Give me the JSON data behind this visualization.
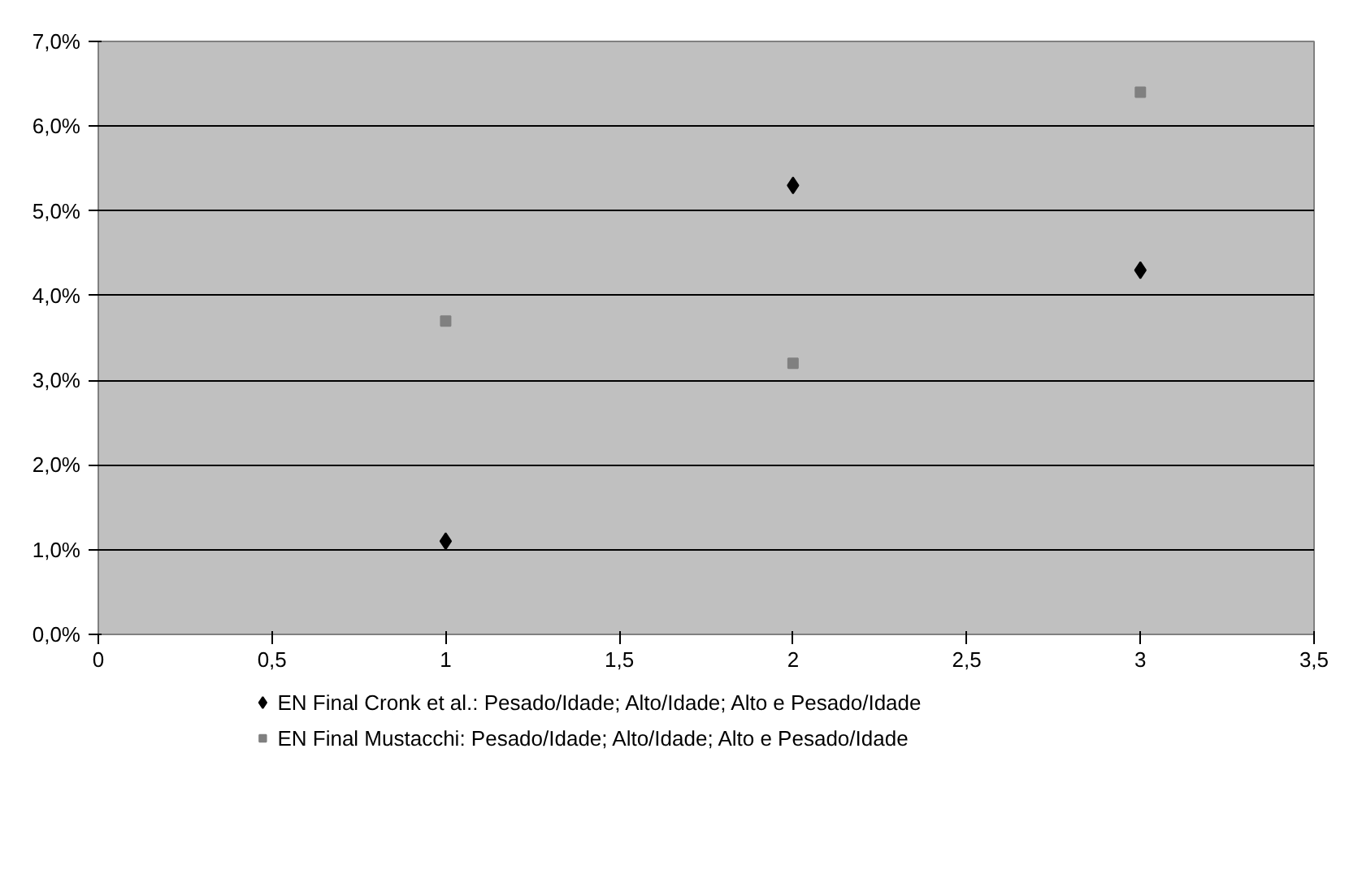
{
  "chart_data": {
    "type": "scatter",
    "xlim": [
      0,
      3.5
    ],
    "xticks": [
      0,
      {
        "value": 0.5,
        "label": "0,5"
      },
      1,
      {
        "value": 1.5,
        "label": "1,5"
      },
      2,
      {
        "value": 2.5,
        "label": "2,5"
      },
      3,
      {
        "value": 3.5,
        "label": "3,5"
      }
    ],
    "ylim": [
      0,
      7
    ],
    "yticks": [
      {
        "value": 0,
        "label": "0,0%"
      },
      {
        "value": 1,
        "label": "1,0%"
      },
      {
        "value": 2,
        "label": "2,0%"
      },
      {
        "value": 3,
        "label": "3,0%"
      },
      {
        "value": 4,
        "label": "4,0%"
      },
      {
        "value": 5,
        "label": "5,0%"
      },
      {
        "value": 6,
        "label": "6,0%"
      },
      {
        "value": 7,
        "label": "7,0%"
      }
    ],
    "x": [
      1,
      2,
      3
    ],
    "series": [
      {
        "name": "EN Final Cronk et al.: Pesado/Idade; Alto/Idade; Alto e Pesado/Idade",
        "color": "#000000",
        "marker": "diamond",
        "values": [
          1.1,
          5.3,
          4.3
        ]
      },
      {
        "name": "EN Final Mustacchi: Pesado/Idade; Alto/Idade; Alto e Pesado/Idade",
        "color": "#808080",
        "marker": "square",
        "values": [
          3.7,
          3.2,
          6.4
        ]
      }
    ],
    "grid": "y",
    "legend": "bottom"
  }
}
